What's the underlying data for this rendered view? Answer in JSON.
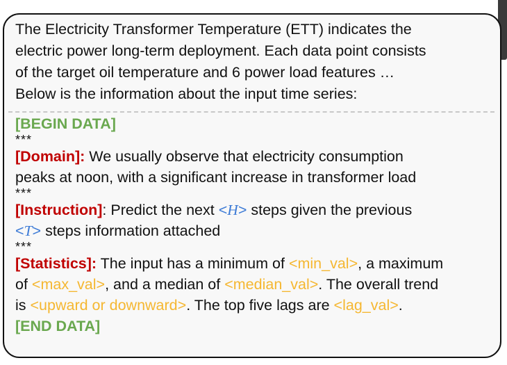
{
  "intro": {
    "line1": "The Electricity Transformer Temperature (ETT) indicates the",
    "line2": "electric power long-term deployment. Each data point consists",
    "line3": "of the target oil temperature and 6 power load features …",
    "line4": "Below is the information about the input time series:"
  },
  "begin_label": "[BEGIN DATA]",
  "separator": "***",
  "domain": {
    "label": "[Domain]:",
    "text1": " We usually observe that electricity consumption",
    "text2": "peaks at noon, with a significant increase in transformer load"
  },
  "instruction": {
    "label": "[Instruction]",
    "text1": ": Predict the next ",
    "h_lt": "<",
    "h_var": "H",
    "h_gt": ">",
    "text2": " steps given the previous",
    "t_lt": "<",
    "t_var": "T",
    "t_gt": ">",
    "text3": " steps information attached"
  },
  "statistics": {
    "label": "[Statistics]:",
    "text1": " The input has a minimum of ",
    "min_val": "<min_val>",
    "text2": ", a maximum",
    "text3": "of ",
    "max_val": "<max_val>",
    "text4": ",  and a median of ",
    "median_val": "<median_val>",
    "text5": ".  The overall trend",
    "text6": "is ",
    "trend_val": "<upward or downward>",
    "text7": ". The top five lags  are ",
    "lag_val": "<lag_val>",
    "text8": "."
  },
  "end_label": "[END DATA]",
  "colors": {
    "label_green": "#6aa84f",
    "label_red": "#c00000",
    "placeholder_orange": "#f5b731",
    "variable_blue": "#3d7bd6"
  }
}
